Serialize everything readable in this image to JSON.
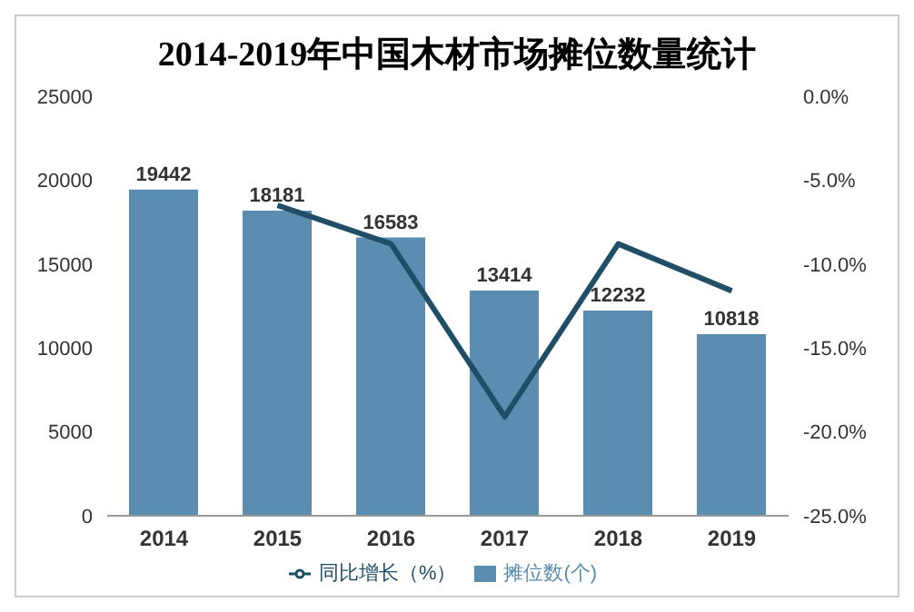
{
  "chart_data": {
    "type": "bar",
    "title": "2014-2019年中国木材市场摊位数量统计",
    "categories": [
      "2014",
      "2015",
      "2016",
      "2017",
      "2018",
      "2019"
    ],
    "series": [
      {
        "name": "摊位数(个)",
        "color": "#5b8db0",
        "values": [
          19442,
          18181,
          16583,
          13414,
          12232,
          10818
        ],
        "value_labels": [
          "19442",
          "18181",
          "16583",
          "13414",
          "12232",
          "10818"
        ]
      },
      {
        "name": "同比增长（%）",
        "type": "line",
        "axis": "y2",
        "color": "#1f4e66",
        "values": [
          null,
          -6.5,
          -8.8,
          -19.1,
          -8.8,
          -11.6
        ]
      }
    ],
    "ylim": [
      0,
      25000
    ],
    "yticks": [
      0,
      5000,
      10000,
      15000,
      20000,
      25000
    ],
    "y2lim": [
      -25,
      0
    ],
    "y2ticks": [
      {
        "value": -25,
        "label": "-25.0%"
      },
      {
        "value": -20,
        "label": "-20.0%"
      },
      {
        "value": -15,
        "label": "-15.0%"
      },
      {
        "value": -10,
        "label": "-10.0%"
      },
      {
        "value": -5,
        "label": "-5.0%"
      },
      {
        "value": 0,
        "label": "0.0%"
      }
    ],
    "legend": "bottom",
    "marker": "none"
  }
}
